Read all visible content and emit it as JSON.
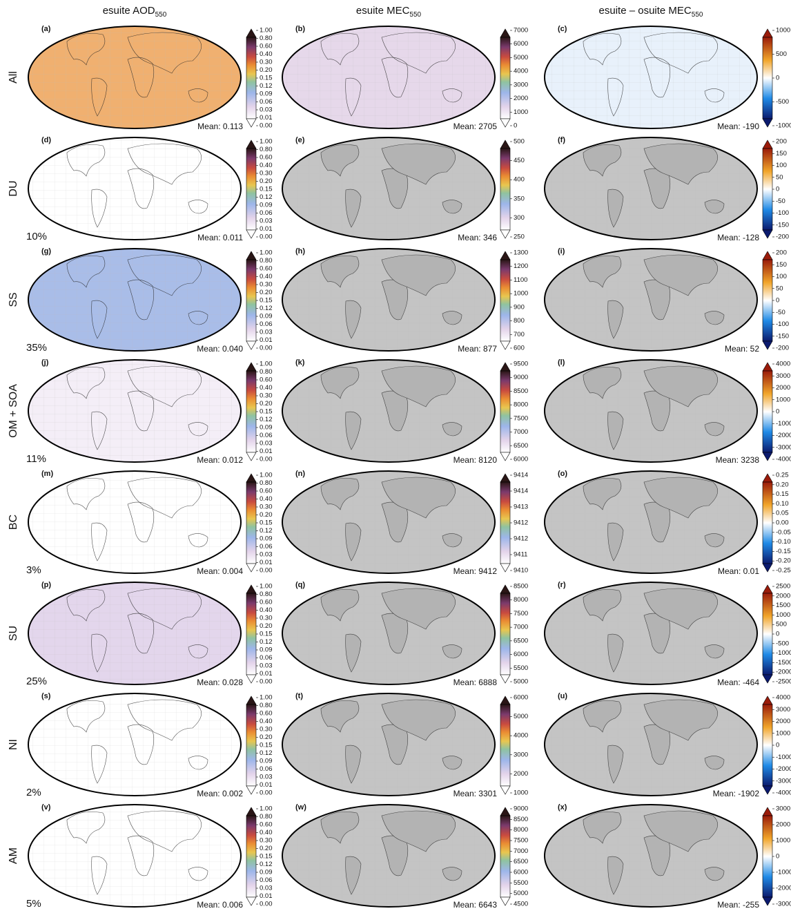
{
  "column_headers": [
    {
      "text": "esuite AOD",
      "sub": "550"
    },
    {
      "text": "esuite MEC",
      "sub": "550"
    },
    {
      "text": "esuite – osuite MEC",
      "sub": "550"
    }
  ],
  "rows": [
    {
      "label": "All",
      "panels": [
        {
          "letter": "(a)",
          "mean": "Mean: 0.113",
          "colorbar": [
            "1.00",
            "0.80",
            "0.60",
            "0.40",
            "0.30",
            "0.20",
            "0.15",
            "0.12",
            "0.09",
            "0.06",
            "0.03",
            "0.01",
            "0.00"
          ]
        },
        {
          "letter": "(b)",
          "mean": "Mean: 2705",
          "colorbar": [
            "7000",
            "6000",
            "5000",
            "4000",
            "3000",
            "2000",
            "1000",
            "0"
          ]
        },
        {
          "letter": "(c)",
          "mean": "Mean: -190",
          "colorbar": [
            "1000",
            "500",
            "0",
            "-500",
            "-1000"
          ]
        }
      ]
    },
    {
      "label": "DU",
      "share": "10%",
      "panels": [
        {
          "letter": "(d)",
          "mean": "Mean: 0.011",
          "colorbar": [
            "1.00",
            "0.80",
            "0.60",
            "0.40",
            "0.30",
            "0.20",
            "0.15",
            "0.12",
            "0.09",
            "0.06",
            "0.03",
            "0.01",
            "0.00"
          ]
        },
        {
          "letter": "(e)",
          "mean": "Mean: 346",
          "colorbar": [
            "500",
            "450",
            "400",
            "350",
            "300",
            "250"
          ]
        },
        {
          "letter": "(f)",
          "mean": "Mean: -128",
          "colorbar": [
            "200",
            "150",
            "100",
            "50",
            "0",
            "-50",
            "-100",
            "-150",
            "-200"
          ]
        }
      ]
    },
    {
      "label": "SS",
      "share": "35%",
      "panels": [
        {
          "letter": "(g)",
          "mean": "Mean: 0.040",
          "colorbar": [
            "1.00",
            "0.80",
            "0.60",
            "0.40",
            "0.30",
            "0.20",
            "0.15",
            "0.12",
            "0.09",
            "0.06",
            "0.03",
            "0.01",
            "0.00"
          ]
        },
        {
          "letter": "(h)",
          "mean": "Mean: 877",
          "colorbar": [
            "1300",
            "1200",
            "1100",
            "1000",
            "900",
            "800",
            "700",
            "600"
          ]
        },
        {
          "letter": "(i)",
          "mean": "Mean: 52",
          "colorbar": [
            "200",
            "150",
            "100",
            "50",
            "0",
            "-50",
            "-100",
            "-150",
            "-200"
          ]
        }
      ]
    },
    {
      "label": "OM + SOA",
      "share": "11%",
      "panels": [
        {
          "letter": "(j)",
          "mean": "Mean: 0.012",
          "colorbar": [
            "1.00",
            "0.80",
            "0.60",
            "0.40",
            "0.30",
            "0.20",
            "0.15",
            "0.12",
            "0.09",
            "0.06",
            "0.03",
            "0.01",
            "0.00"
          ]
        },
        {
          "letter": "(k)",
          "mean": "Mean: 8120",
          "colorbar": [
            "9500",
            "9000",
            "8500",
            "8000",
            "7500",
            "7000",
            "6500",
            "6000"
          ]
        },
        {
          "letter": "(l)",
          "mean": "Mean: 3238",
          "colorbar": [
            "4000",
            "3000",
            "2000",
            "1000",
            "0",
            "-1000",
            "-2000",
            "-3000",
            "-4000"
          ]
        }
      ]
    },
    {
      "label": "BC",
      "share": "3%",
      "panels": [
        {
          "letter": "(m)",
          "mean": "Mean: 0.004",
          "colorbar": [
            "1.00",
            "0.80",
            "0.60",
            "0.40",
            "0.30",
            "0.20",
            "0.15",
            "0.12",
            "0.09",
            "0.06",
            "0.03",
            "0.01",
            "0.00"
          ]
        },
        {
          "letter": "(n)",
          "mean": "Mean: 9412",
          "colorbar": [
            "9414",
            "9414",
            "9413",
            "9412",
            "9412",
            "9411",
            "9410"
          ]
        },
        {
          "letter": "(o)",
          "mean": "Mean: 0.01",
          "colorbar": [
            "0.25",
            "0.20",
            "0.15",
            "0.10",
            "0.05",
            "0.00",
            "-0.05",
            "-0.10",
            "-0.15",
            "-0.20",
            "-0.25"
          ]
        }
      ]
    },
    {
      "label": "SU",
      "share": "25%",
      "panels": [
        {
          "letter": "(p)",
          "mean": "Mean: 0.028",
          "colorbar": [
            "1.00",
            "0.80",
            "0.60",
            "0.40",
            "0.30",
            "0.20",
            "0.15",
            "0.12",
            "0.09",
            "0.06",
            "0.03",
            "0.01",
            "0.00"
          ]
        },
        {
          "letter": "(q)",
          "mean": "Mean: 6888",
          "colorbar": [
            "8500",
            "8000",
            "7500",
            "7000",
            "6500",
            "6000",
            "5500",
            "5000"
          ]
        },
        {
          "letter": "(r)",
          "mean": "Mean: -464",
          "colorbar": [
            "2500",
            "2000",
            "1500",
            "1000",
            "500",
            "0",
            "-500",
            "-1000",
            "-1500",
            "-2000",
            "-2500"
          ]
        }
      ]
    },
    {
      "label": "NI",
      "share": "2%",
      "panels": [
        {
          "letter": "(s)",
          "mean": "Mean: 0.002",
          "colorbar": [
            "1.00",
            "0.80",
            "0.60",
            "0.40",
            "0.30",
            "0.20",
            "0.15",
            "0.12",
            "0.09",
            "0.06",
            "0.03",
            "0.01",
            "0.00"
          ]
        },
        {
          "letter": "(t)",
          "mean": "Mean: 3301",
          "colorbar": [
            "6000",
            "5000",
            "4000",
            "3000",
            "2000",
            "1000"
          ]
        },
        {
          "letter": "(u)",
          "mean": "Mean: -1902",
          "colorbar": [
            "4000",
            "3000",
            "2000",
            "1000",
            "0",
            "-1000",
            "-2000",
            "-3000",
            "-4000"
          ]
        }
      ]
    },
    {
      "label": "AM",
      "share": "5%",
      "panels": [
        {
          "letter": "(v)",
          "mean": "Mean: 0.006",
          "colorbar": [
            "1.00",
            "0.80",
            "0.60",
            "0.40",
            "0.30",
            "0.20",
            "0.15",
            "0.12",
            "0.09",
            "0.06",
            "0.03",
            "0.01",
            "0.00"
          ]
        },
        {
          "letter": "(w)",
          "mean": "Mean: 6643",
          "colorbar": [
            "9000",
            "8500",
            "8000",
            "7500",
            "7000",
            "6500",
            "6000",
            "5500",
            "5000",
            "4500"
          ]
        },
        {
          "letter": "(x)",
          "mean": "Mean: -255",
          "colorbar": [
            "3000",
            "2000",
            "1000",
            "0",
            "-1000",
            "-2000",
            "-3000"
          ]
        }
      ]
    }
  ]
}
